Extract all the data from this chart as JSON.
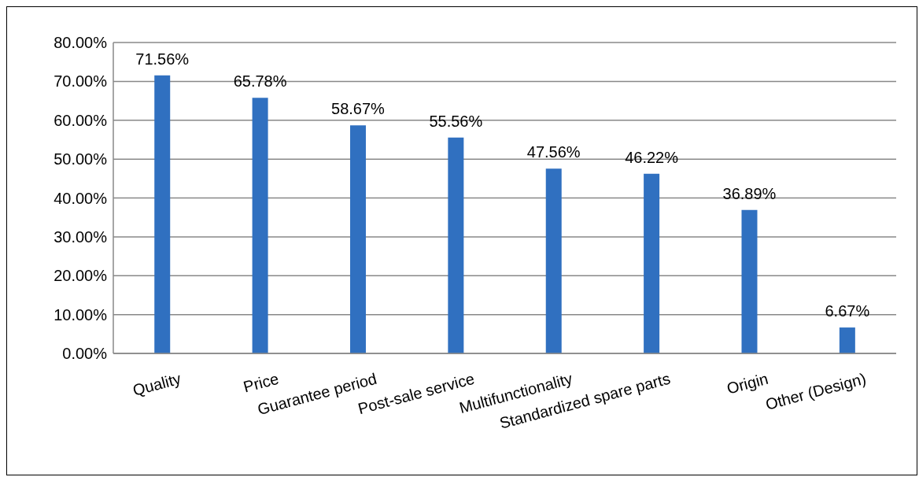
{
  "chart_data": {
    "type": "bar",
    "categories": [
      "Quality",
      "Price",
      "Guarantee period",
      "Post-sale service",
      "Multifunctionality",
      "Standardized spare parts",
      "Origin",
      "Other (Design)"
    ],
    "values": [
      71.56,
      65.78,
      58.67,
      55.56,
      47.56,
      46.22,
      36.89,
      6.67
    ],
    "value_labels": [
      "71.56%",
      "65.78%",
      "58.67%",
      "55.56%",
      "47.56%",
      "46.22%",
      "36.89%",
      "6.67%"
    ],
    "color": "#3070c0",
    "ylim": [
      0,
      80
    ],
    "yticks": [
      {
        "value": 0,
        "label": "0.00%"
      },
      {
        "value": 10,
        "label": "10.00%"
      },
      {
        "value": 20,
        "label": "20.00%"
      },
      {
        "value": 30,
        "label": "30.00%"
      },
      {
        "value": 40,
        "label": "40.00%"
      },
      {
        "value": 50,
        "label": "50.00%"
      },
      {
        "value": 60,
        "label": "60.00%"
      },
      {
        "value": 70,
        "label": "70.00%"
      },
      {
        "value": 80,
        "label": "80.00%"
      }
    ],
    "grid": "y"
  }
}
